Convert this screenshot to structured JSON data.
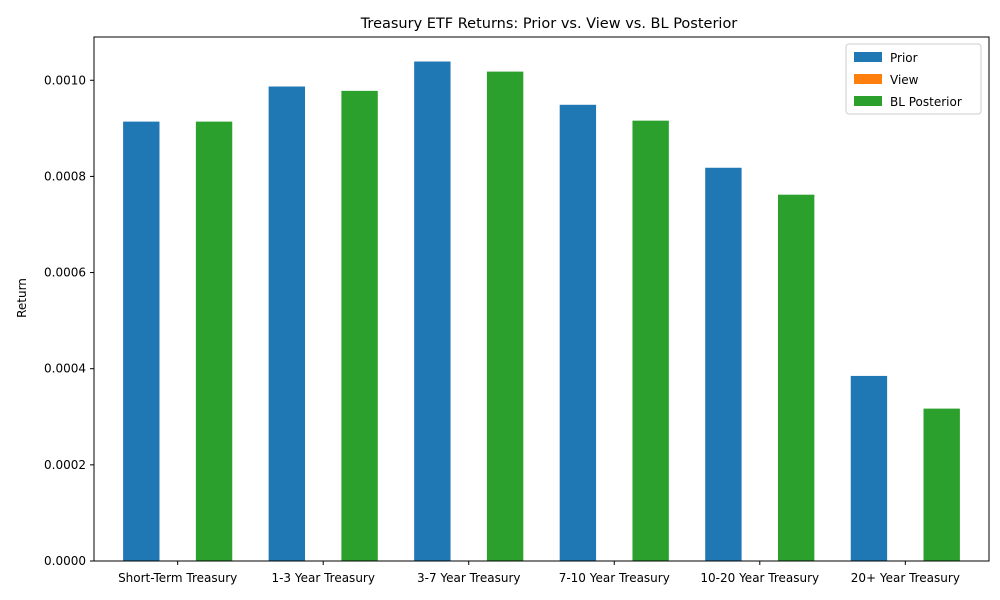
{
  "chart_data": {
    "type": "bar",
    "title": "Treasury ETF Returns: Prior vs. View vs. BL Posterior",
    "xlabel": "",
    "ylabel": "Return",
    "ylim": [
      0,
      0.00109
    ],
    "yticks": [
      "0.0000",
      "0.0002",
      "0.0004",
      "0.0006",
      "0.0008",
      "0.0010"
    ],
    "ytick_values": [
      0,
      0.0002,
      0.0004,
      0.0006,
      0.0008,
      0.001
    ],
    "categories": [
      "Short-Term Treasury",
      "1-3 Year Treasury",
      "3-7 Year Treasury",
      "7-10 Year Treasury",
      "10-20 Year Treasury",
      "20+ Year Treasury"
    ],
    "series": [
      {
        "name": "Prior",
        "color": "#1f77b4",
        "values": [
          0.000914,
          0.000987,
          0.001039,
          0.000949,
          0.000818,
          0.000385
        ]
      },
      {
        "name": "View",
        "color": "#ff7f0e",
        "values": [
          0,
          0,
          0,
          0,
          0,
          0
        ]
      },
      {
        "name": "BL Posterior",
        "color": "#2ca02c",
        "values": [
          0.000914,
          0.000978,
          0.001018,
          0.000916,
          0.000762,
          0.000317
        ]
      }
    ],
    "legend_position": "top-right",
    "grid": false
  }
}
